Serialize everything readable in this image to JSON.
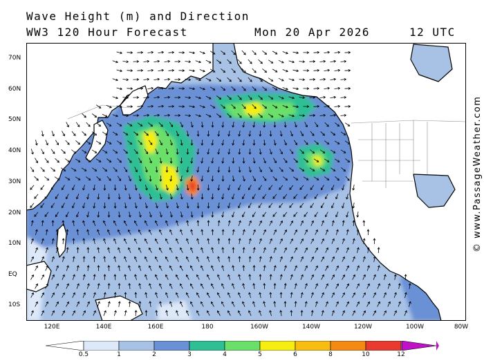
{
  "header": {
    "title": "Wave Height (m) and Direction",
    "model": "WW3 120 Hour Forecast",
    "date": "Mon 20 Apr 2026",
    "time": "12 UTC"
  },
  "credit": "© www.PassageWeather.com",
  "axes": {
    "lat_labels": [
      "70N",
      "60N",
      "50N",
      "40N",
      "30N",
      "20N",
      "10N",
      "EQ",
      "10S"
    ],
    "lon_labels": [
      "120E",
      "140E",
      "160E",
      "180",
      "160W",
      "140W",
      "120W",
      "100W",
      "80W"
    ]
  },
  "legend": {
    "labels": [
      "0.5",
      "1",
      "2",
      "3",
      "4",
      "5",
      "6",
      "8",
      "10",
      "12"
    ],
    "colors": [
      "#dde8f8",
      "#a8c2e6",
      "#6a90d6",
      "#2fbf95",
      "#6ae06a",
      "#f6ee10",
      "#f8bd10",
      "#f48a14",
      "#e83a30",
      "#c0101c",
      "#c010c8"
    ]
  },
  "colors": {
    "land": "#ffffff",
    "coast": "#000000",
    "borders": "#8a8a8a",
    "sea_calm": "#a8c2e6"
  }
}
